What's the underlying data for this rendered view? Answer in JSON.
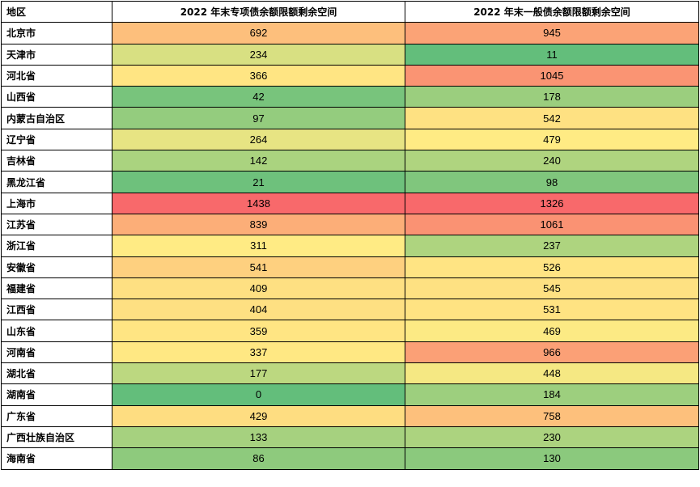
{
  "chart_data": {
    "type": "table",
    "columns": [
      "地区",
      "2022 年末专项债余额限额剩余空间",
      "2022 年末一般债余额限额剩余空间"
    ],
    "rows": [
      {
        "region": "北京市",
        "special": 692,
        "general": 945
      },
      {
        "region": "天津市",
        "special": 234,
        "general": 11
      },
      {
        "region": "河北省",
        "special": 366,
        "general": 1045
      },
      {
        "region": "山西省",
        "special": 42,
        "general": 178
      },
      {
        "region": "内蒙古自治区",
        "special": 97,
        "general": 542
      },
      {
        "region": "辽宁省",
        "special": 264,
        "general": 479
      },
      {
        "region": "吉林省",
        "special": 142,
        "general": 240
      },
      {
        "region": "黑龙江省",
        "special": 21,
        "general": 98
      },
      {
        "region": "上海市",
        "special": 1438,
        "general": 1326
      },
      {
        "region": "江苏省",
        "special": 839,
        "general": 1061
      },
      {
        "region": "浙江省",
        "special": 311,
        "general": 237
      },
      {
        "region": "安徽省",
        "special": 541,
        "general": 526
      },
      {
        "region": "福建省",
        "special": 409,
        "general": 545
      },
      {
        "region": "江西省",
        "special": 404,
        "general": 531
      },
      {
        "region": "山东省",
        "special": 359,
        "general": 469
      },
      {
        "region": "河南省",
        "special": 337,
        "general": 966
      },
      {
        "region": "湖北省",
        "special": 177,
        "general": 448
      },
      {
        "region": "湖南省",
        "special": 0,
        "general": 184
      },
      {
        "region": "广东省",
        "special": 429,
        "general": 758
      },
      {
        "region": "广西壮族自治区",
        "special": 133,
        "general": 230
      },
      {
        "region": "海南省",
        "special": 86,
        "general": 130
      }
    ],
    "color_scale": {
      "low": "#63be7b",
      "mid": "#ffeb84",
      "high": "#f8696b"
    }
  }
}
